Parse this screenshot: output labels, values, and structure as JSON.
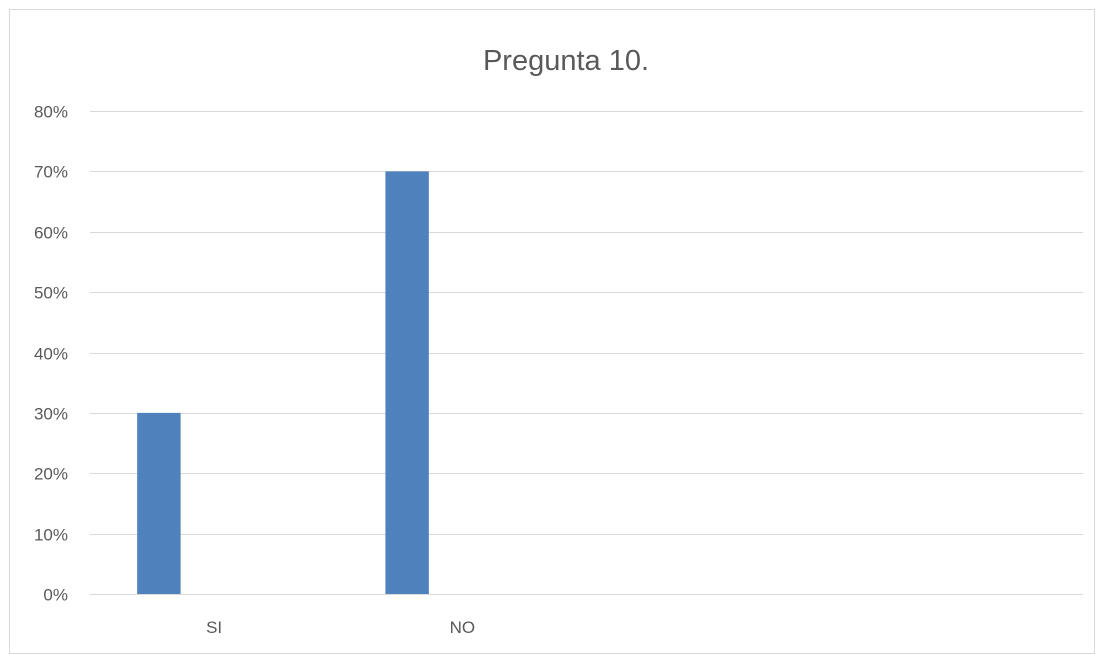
{
  "chart_data": {
    "type": "bar",
    "title": "Pregunta 10.",
    "categories": [
      "SI",
      "NO",
      "",
      ""
    ],
    "values": [
      0.3,
      0.7,
      null,
      null
    ],
    "ylim": [
      0,
      0.8
    ],
    "y_ticks": [
      0,
      0.1,
      0.2,
      0.3,
      0.4,
      0.5,
      0.6,
      0.7,
      0.8
    ],
    "y_tick_labels": [
      "0%",
      "10%",
      "20%",
      "30%",
      "40%",
      "50%",
      "60%",
      "70%",
      "80%"
    ],
    "grid": true,
    "legend": "none",
    "colors": {
      "bar": "#4f81bd",
      "grid": "#d9d9d9",
      "text": "#595959"
    }
  }
}
